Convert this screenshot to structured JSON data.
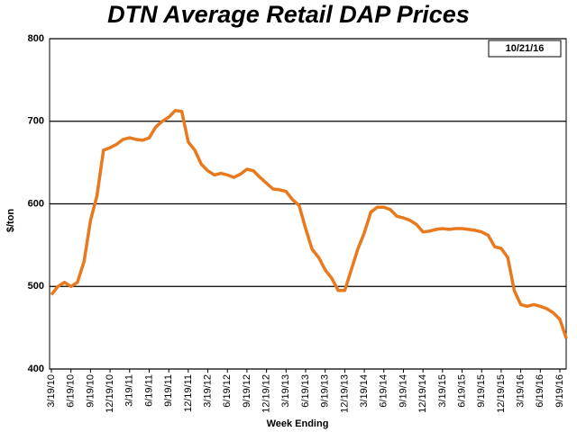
{
  "chart_data": {
    "type": "line",
    "title": "DTN Average Retail DAP Prices",
    "annotation": "10/21/16",
    "ylabel": "$/ton",
    "xlabel": "Week Ending",
    "color": "#e8791e",
    "categories": [
      "3/19/10",
      null,
      null,
      "6/19/10",
      null,
      null,
      "9/19/10",
      null,
      null,
      "12/19/10",
      null,
      null,
      "3/19/11",
      null,
      null,
      "6/19/11",
      null,
      null,
      "9/19/11",
      null,
      null,
      "12/19/11",
      null,
      null,
      "3/19/12",
      null,
      null,
      "6/19/12",
      null,
      null,
      "9/19/12",
      null,
      null,
      "12/19/12",
      null,
      null,
      "3/19/13",
      null,
      null,
      "6/19/13",
      null,
      null,
      "9/19/13",
      null,
      null,
      "12/19/13",
      null,
      null,
      "3/19/14",
      null,
      null,
      "6/19/14",
      null,
      null,
      "9/19/14",
      null,
      null,
      "12/19/14",
      null,
      null,
      "3/19/15",
      null,
      null,
      "6/19/15",
      null,
      null,
      "9/19/15",
      null,
      null,
      "12/19/15",
      null,
      null,
      "3/19/16",
      null,
      null,
      "6/19/16",
      null,
      null,
      "9/19/16",
      null
    ],
    "values": [
      490,
      500,
      505,
      500,
      505,
      530,
      580,
      610,
      665,
      668,
      672,
      678,
      680,
      678,
      677,
      680,
      693,
      700,
      705,
      713,
      712,
      675,
      665,
      648,
      640,
      635,
      637,
      635,
      632,
      636,
      642,
      640,
      632,
      625,
      618,
      617,
      615,
      605,
      598,
      570,
      545,
      535,
      520,
      510,
      495,
      495,
      520,
      545,
      565,
      590,
      596,
      596,
      593,
      585,
      583,
      580,
      575,
      566,
      567,
      569,
      570,
      569,
      570,
      570,
      569,
      568,
      566,
      562,
      548,
      546,
      535,
      495,
      478,
      476,
      478,
      476,
      473,
      468,
      460,
      437
    ],
    "ylim": [
      400,
      800
    ],
    "yticks": [
      400,
      500,
      600,
      700,
      800
    ],
    "grid": true
  }
}
